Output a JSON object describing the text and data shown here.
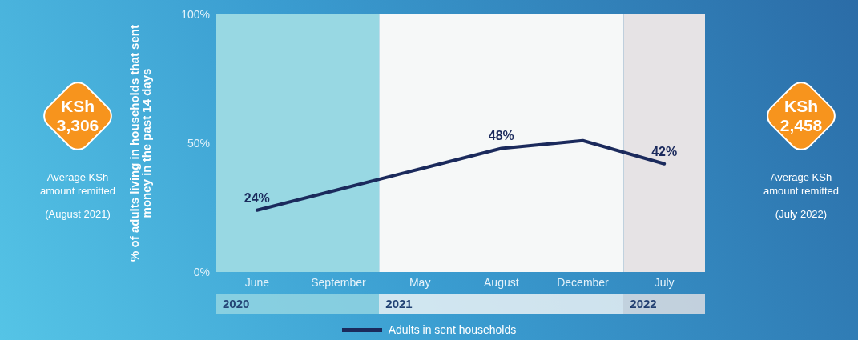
{
  "chart_data": {
    "type": "line",
    "ylabel": "% of adults living in households that sent money in the past 14 days",
    "categories": [
      "June",
      "September",
      "May",
      "August",
      "December",
      "July"
    ],
    "series": [
      {
        "name": "Adults in sent households",
        "color": "#1b2a5c",
        "values": [
          24,
          32,
          40,
          48,
          51,
          42
        ],
        "value_labels": [
          "24%",
          null,
          null,
          "48%",
          null,
          "42%"
        ]
      }
    ],
    "ylim": [
      0,
      100
    ],
    "yticks": [
      {
        "value": 0,
        "label": "0%"
      },
      {
        "value": 50,
        "label": "50%"
      },
      {
        "value": 100,
        "label": "100%"
      }
    ],
    "legend": "bottom",
    "marker": "none",
    "line_style": "solid",
    "bands": [
      {
        "axis": "x",
        "from": "June",
        "to": "September",
        "label": "2020",
        "color": "#98d8e3"
      },
      {
        "axis": "x",
        "from": "May",
        "to": "December",
        "label": "2021",
        "color": "#f6f8f8"
      },
      {
        "axis": "x",
        "from": "July",
        "to": "July",
        "label": "2022",
        "color": "#e6e3e5"
      }
    ],
    "annotations": [
      "KSh 3,306",
      "Average KSh amount remitted",
      "(August 2021)",
      "KSh 2,458",
      "Average KSh amount remitted",
      "(July 2022)"
    ]
  }
}
